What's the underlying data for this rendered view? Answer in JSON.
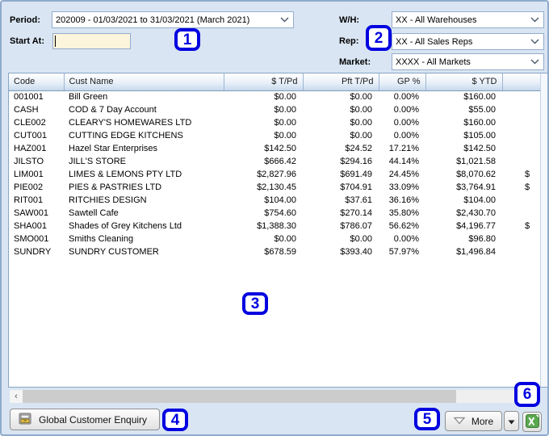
{
  "filters": {
    "period_label": "Period:",
    "period_value": "202009 - 01/03/2021 to 31/03/2021 (March 2021)",
    "start_at_label": "Start At:",
    "start_at_value": "",
    "wh_label": "W/H:",
    "wh_value": "XX - All Warehouses",
    "rep_label": "Rep:",
    "rep_value": "XX - All Sales Reps",
    "market_label": "Market:",
    "market_value": "XXXX - All Markets"
  },
  "table": {
    "columns": [
      "Code",
      "Cust Name",
      "$ T/Pd",
      "Pft T/Pd",
      "GP %",
      "$ YTD",
      ""
    ],
    "rows": [
      [
        "001001",
        "Bill Green",
        "$0.00",
        "$0.00",
        "0.00%",
        "$160.00",
        ""
      ],
      [
        "CASH",
        "COD & 7 Day Account",
        "$0.00",
        "$0.00",
        "0.00%",
        "$55.00",
        ""
      ],
      [
        "CLE002",
        "CLEARY'S HOMEWARES LTD",
        "$0.00",
        "$0.00",
        "0.00%",
        "$160.00",
        ""
      ],
      [
        "CUT001",
        "CUTTING EDGE KITCHENS",
        "$0.00",
        "$0.00",
        "0.00%",
        "$105.00",
        ""
      ],
      [
        "HAZ001",
        "Hazel Star Enterprises",
        "$142.50",
        "$24.52",
        "17.21%",
        "$142.50",
        ""
      ],
      [
        "JILSTO",
        "JILL'S STORE",
        "$666.42",
        "$294.16",
        "44.14%",
        "$1,021.58",
        ""
      ],
      [
        "LIM001",
        "LIMES & LEMONS PTY LTD",
        "$2,827.96",
        "$691.49",
        "24.45%",
        "$8,070.62",
        "$"
      ],
      [
        "PIE002",
        "PIES & PASTRIES LTD",
        "$2,130.45",
        "$704.91",
        "33.09%",
        "$3,764.91",
        "$"
      ],
      [
        "RIT001",
        "RITCHIES DESIGN",
        "$104.00",
        "$37.61",
        "36.16%",
        "$104.00",
        ""
      ],
      [
        "SAW001",
        "Sawtell Cafe",
        "$754.60",
        "$270.14",
        "35.80%",
        "$2,430.70",
        ""
      ],
      [
        "SHA001",
        "Shades of Grey Kitchens Ltd",
        "$1,388.30",
        "$786.07",
        "56.62%",
        "$4,196.77",
        "$"
      ],
      [
        "SMO001",
        "Smiths Cleaning",
        "$0.00",
        "$0.00",
        "0.00%",
        "$96.80",
        ""
      ],
      [
        "SUNDRY",
        "SUNDRY CUSTOMER",
        "$678.59",
        "$393.40",
        "57.97%",
        "$1,496.84",
        ""
      ]
    ]
  },
  "toolbar": {
    "global_enquiry_label": "Global Customer Enquiry",
    "more_label": "More"
  },
  "scrollbar": {
    "left_arrow_glyph": "‹"
  },
  "icons": {
    "global_enquiry": "card-file-icon",
    "more": "triangle-down-outline-icon",
    "more_menu": "triangle-down-icon",
    "export_excel": "excel-icon",
    "combo_chevron": "chevron-down-icon"
  },
  "callouts": [
    "1",
    "2",
    "3",
    "4",
    "5",
    "6"
  ],
  "colors": {
    "window_bg": "#d9e5f2",
    "input_highlight": "#fdf4dc",
    "callout_blue": "#0000e0",
    "excel_green": "#5aa84e"
  }
}
